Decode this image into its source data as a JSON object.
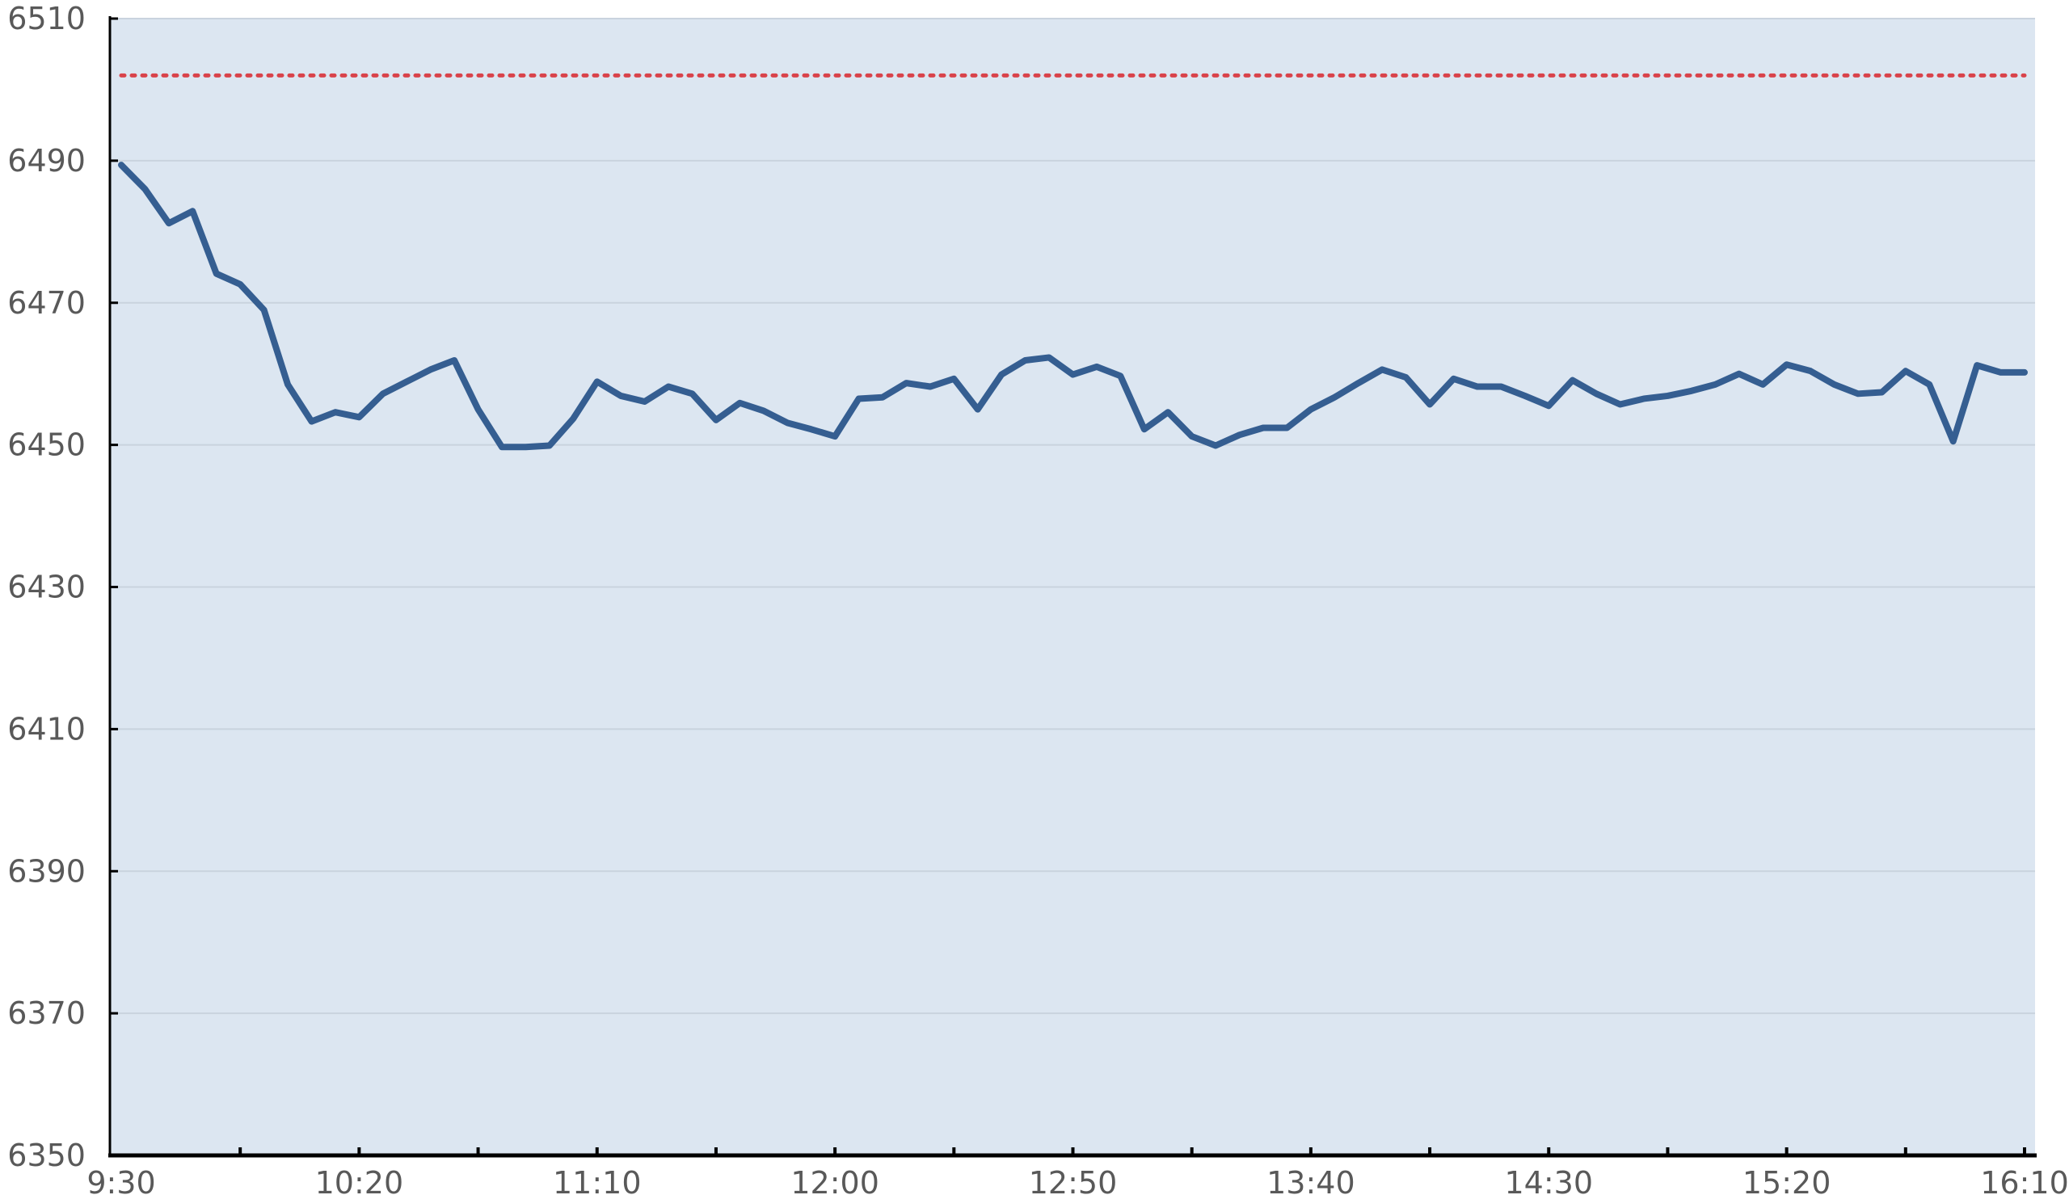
{
  "chart_data": {
    "type": "line",
    "title": "",
    "xlabel": "",
    "ylabel": "",
    "ylim": [
      6350,
      6510
    ],
    "y_ticks": [
      "6350",
      "6370",
      "6390",
      "6410",
      "6430",
      "6450",
      "6470",
      "6490",
      "6510"
    ],
    "x_tick_labels": [
      "9:30",
      "10:20",
      "11:10",
      "12:00",
      "12:50",
      "13:40",
      "14:30",
      "15:20",
      "16:10"
    ],
    "x_start": "9:30",
    "x_end": "16:10",
    "x_interval_minutes": 5,
    "grid": "horizontal",
    "plot_background": "#dce6f1",
    "reference_line": {
      "value": 6502,
      "color": "#d9434b",
      "style": "dotted"
    },
    "series": [
      {
        "color": "#355e91",
        "values": [
          6489.4,
          6486.0,
          6481.2,
          6482.9,
          6474.1,
          6472.6,
          6469.0,
          6458.5,
          6453.3,
          6454.6,
          6453.9,
          6457.2,
          6458.9,
          6460.6,
          6461.9,
          6455.0,
          6449.7,
          6449.7,
          6449.9,
          6453.7,
          6458.9,
          6456.9,
          6456.1,
          6458.2,
          6457.2,
          6453.5,
          6455.9,
          6454.8,
          6453.1,
          6452.2,
          6451.2,
          6456.5,
          6456.7,
          6458.7,
          6458.2,
          6459.3,
          6455.0,
          6459.9,
          6461.9,
          6462.3,
          6459.9,
          6461.0,
          6459.7,
          6452.2,
          6454.6,
          6451.2,
          6449.9,
          6451.4,
          6452.4,
          6452.4,
          6455.0,
          6456.7,
          6458.7,
          6460.6,
          6459.5,
          6455.7,
          6459.3,
          6458.2,
          6458.2,
          6456.9,
          6455.5,
          6459.1,
          6457.2,
          6455.7,
          6456.5,
          6456.9,
          6457.6,
          6458.5,
          6460.0,
          6458.5,
          6461.3,
          6460.4,
          6458.5,
          6457.2,
          6457.4,
          6460.4,
          6458.5,
          6450.5,
          6461.2,
          6460.2,
          6460.2
        ]
      }
    ]
  }
}
